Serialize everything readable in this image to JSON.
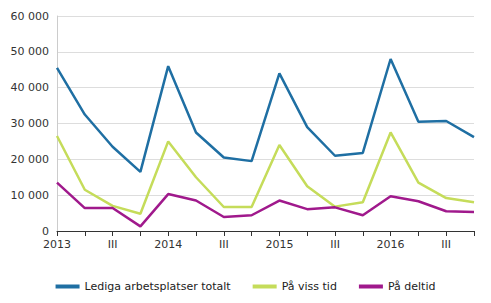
{
  "chart_data": {
    "type": "line",
    "categories": [
      "2013",
      null,
      "III",
      null,
      "2014",
      null,
      "III",
      null,
      "2015",
      null,
      "III",
      null,
      "2016",
      null,
      "III",
      null
    ],
    "series": [
      {
        "name": "Lediga arbetsplatser totalt",
        "color": "#1f6fa3",
        "values": [
          45500,
          32500,
          23500,
          16500,
          46000,
          27500,
          20500,
          19500,
          44000,
          29000,
          21000,
          21800,
          48000,
          30500,
          30700,
          26200
        ]
      },
      {
        "name": "På viss tid",
        "color": "#c5dc5a",
        "values": [
          26500,
          11500,
          7000,
          4800,
          25000,
          15000,
          6700,
          6700,
          24000,
          12500,
          6800,
          8000,
          27500,
          13500,
          9200,
          8000
        ]
      },
      {
        "name": "På deltid",
        "color": "#a0198c",
        "values": [
          13500,
          6400,
          6400,
          1300,
          10300,
          8500,
          3900,
          4400,
          8500,
          6100,
          6600,
          4400,
          9700,
          8300,
          5500,
          5300
        ]
      }
    ],
    "ylim": [
      0,
      60000
    ],
    "yticks": [
      0,
      {
        "value": 10000,
        "label": "10 000"
      },
      {
        "value": 20000,
        "label": "20 000"
      },
      {
        "value": 30000,
        "label": "30 000"
      },
      {
        "value": 40000,
        "label": "40 000"
      },
      {
        "value": 50000,
        "label": "50 000"
      },
      {
        "value": 60000,
        "label": "60 000"
      }
    ],
    "grid": true,
    "legend": "bottom"
  }
}
